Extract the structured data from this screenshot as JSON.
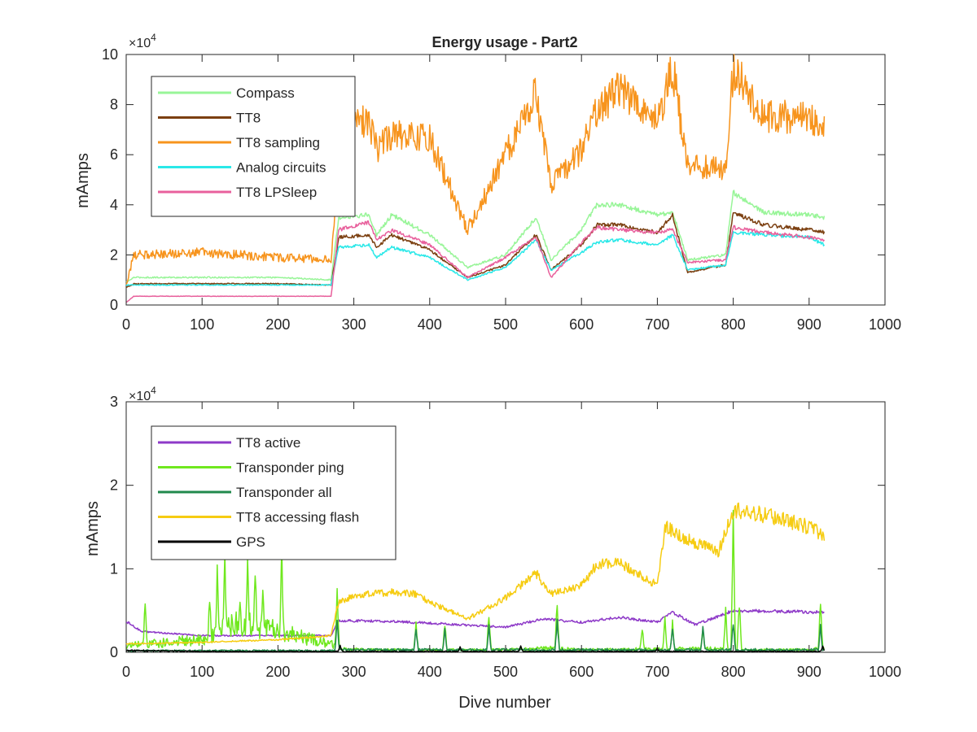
{
  "figure": {
    "title": "Energy usage - Part2",
    "xlabel": "Dive number"
  },
  "chart_data": [
    {
      "type": "line",
      "title": "Energy usage - Part2",
      "xlabel": "",
      "ylabel": "mAmps",
      "xlim": [
        0,
        1000
      ],
      "ylim": [
        0,
        100000
      ],
      "xticks": [
        0,
        100,
        200,
        300,
        400,
        500,
        600,
        700,
        800,
        900,
        1000
      ],
      "xtick_labels": [
        "0",
        "100",
        "200",
        "300",
        "400",
        "500",
        "600",
        "700",
        "800",
        "900",
        "1000"
      ],
      "yticks": [
        0,
        20000,
        40000,
        60000,
        80000,
        100000
      ],
      "ytick_labels": [
        "0",
        "2",
        "4",
        "6",
        "8",
        "10"
      ],
      "exponent_label": "×10",
      "exponent_power": "4",
      "grid": false,
      "legend_position": "top-left",
      "series": [
        {
          "name": "Compass",
          "color": "#98f598",
          "noise": 0.025,
          "x": [
            0,
            10,
            100,
            200,
            270,
            280,
            320,
            330,
            350,
            400,
            450,
            500,
            540,
            560,
            600,
            620,
            650,
            700,
            720,
            740,
            790,
            800,
            840,
            900,
            920
          ],
          "y": [
            9000,
            11000,
            11000,
            11000,
            10000,
            35000,
            36000,
            28000,
            36000,
            28000,
            15000,
            20000,
            35000,
            18000,
            30000,
            40000,
            40000,
            36000,
            37000,
            18000,
            20000,
            45000,
            37000,
            36000,
            35000
          ]
        },
        {
          "name": "TT8",
          "color": "#7b3f10",
          "noise": 0.025,
          "x": [
            0,
            10,
            100,
            200,
            270,
            280,
            320,
            330,
            350,
            400,
            450,
            500,
            540,
            560,
            600,
            620,
            650,
            700,
            720,
            740,
            790,
            800,
            840,
            900,
            920
          ],
          "y": [
            7000,
            8500,
            8500,
            8500,
            8000,
            27000,
            28000,
            23000,
            28000,
            22000,
            11000,
            16000,
            28000,
            14000,
            24000,
            32000,
            32000,
            29000,
            36000,
            13000,
            16000,
            37000,
            32000,
            30000,
            29000
          ]
        },
        {
          "name": "TT8 sampling",
          "color": "#f7941d",
          "noise": 0.09,
          "x": [
            0,
            10,
            100,
            200,
            270,
            280,
            300,
            320,
            330,
            350,
            400,
            450,
            500,
            540,
            560,
            600,
            620,
            650,
            700,
            720,
            740,
            790,
            800,
            840,
            900,
            920
          ],
          "y": [
            8000,
            20000,
            21000,
            19000,
            18000,
            55000,
            72000,
            74000,
            62000,
            68000,
            66000,
            30000,
            60000,
            85000,
            48000,
            62000,
            78000,
            86000,
            73000,
            95000,
            55000,
            55000,
            95000,
            75000,
            75000,
            73000
          ]
        },
        {
          "name": "Analog circuits",
          "color": "#2ae8e8",
          "noise": 0.025,
          "x": [
            0,
            10,
            100,
            200,
            270,
            280,
            320,
            330,
            350,
            400,
            450,
            500,
            540,
            560,
            600,
            620,
            650,
            700,
            720,
            740,
            790,
            800,
            840,
            900,
            920
          ],
          "y": [
            8000,
            8000,
            8000,
            8000,
            8000,
            23000,
            24000,
            19000,
            23000,
            19000,
            10000,
            15000,
            26000,
            14000,
            21000,
            25000,
            26000,
            24000,
            28000,
            14000,
            16000,
            29000,
            28000,
            27000,
            24000
          ]
        },
        {
          "name": "TT8 LPSleep",
          "color": "#e8609c",
          "noise": 0.025,
          "x": [
            0,
            10,
            100,
            200,
            270,
            280,
            320,
            330,
            350,
            400,
            450,
            500,
            540,
            560,
            600,
            620,
            650,
            700,
            720,
            740,
            790,
            800,
            840,
            900,
            920
          ],
          "y": [
            1000,
            3500,
            3500,
            3500,
            3500,
            30000,
            33000,
            26000,
            30000,
            24000,
            11000,
            19000,
            27000,
            11000,
            25000,
            31000,
            30000,
            29000,
            30000,
            17000,
            18000,
            31000,
            29000,
            27000,
            26000
          ]
        }
      ]
    },
    {
      "type": "line",
      "title": "",
      "xlabel": "Dive number",
      "ylabel": "mAmps",
      "xlim": [
        0,
        1000
      ],
      "ylim": [
        0,
        30000
      ],
      "xticks": [
        0,
        100,
        200,
        300,
        400,
        500,
        600,
        700,
        800,
        900,
        1000
      ],
      "xtick_labels": [
        "0",
        "100",
        "200",
        "300",
        "400",
        "500",
        "600",
        "700",
        "800",
        "900",
        "1000"
      ],
      "yticks": [
        0,
        10000,
        20000,
        30000
      ],
      "ytick_labels": [
        "0",
        "1",
        "2",
        "3"
      ],
      "exponent_label": "×10",
      "exponent_power": "4",
      "grid": false,
      "legend_position": "top-left",
      "series": [
        {
          "name": "TT8 active",
          "color": "#8e3ac8",
          "noise": 0.04,
          "x": [
            0,
            20,
            100,
            200,
            270,
            280,
            350,
            400,
            500,
            550,
            600,
            650,
            700,
            720,
            750,
            800,
            920
          ],
          "y": [
            3700,
            2500,
            2000,
            2000,
            2000,
            3800,
            3700,
            3500,
            3000,
            4000,
            3600,
            4200,
            3600,
            4800,
            3300,
            5000,
            4800
          ]
        },
        {
          "name": "Transponder ping",
          "color": "#6fe81e",
          "noise": 0.5,
          "x": [
            0,
            100,
            150,
            200,
            270,
            280,
            320,
            400,
            500,
            560,
            600,
            700,
            760,
            800,
            900,
            920
          ],
          "y": [
            800,
            1500,
            3500,
            2500,
            1000,
            400,
            300,
            300,
            300,
            500,
            300,
            400,
            500,
            300,
            300,
            500
          ]
        },
        {
          "name": "Transponder all",
          "color": "#218a4c",
          "noise": 0.5,
          "x": [
            0,
            100,
            270,
            280,
            400,
            500,
            600,
            700,
            800,
            900,
            920
          ],
          "y": [
            200,
            200,
            200,
            300,
            300,
            300,
            300,
            300,
            300,
            300,
            300
          ]
        },
        {
          "name": "TT8 accessing flash",
          "color": "#f6cc12",
          "noise": 0.06,
          "x": [
            0,
            100,
            200,
            270,
            280,
            300,
            350,
            380,
            400,
            450,
            500,
            540,
            560,
            600,
            620,
            650,
            700,
            710,
            750,
            780,
            800,
            840,
            900,
            920
          ],
          "y": [
            1000,
            1200,
            1500,
            2000,
            6000,
            6800,
            7200,
            7000,
            6000,
            4000,
            6500,
            9500,
            7000,
            8000,
            10500,
            10800,
            8000,
            15000,
            13000,
            12000,
            17000,
            16500,
            15000,
            14000
          ]
        },
        {
          "name": "GPS",
          "color": "#000000",
          "noise": 0.6,
          "x": [
            0,
            100,
            270,
            280,
            920
          ],
          "y": [
            200,
            100,
            100,
            100,
            100
          ]
        }
      ],
      "spikes": {
        "Transponder ping": {
          "x": [
            25,
            110,
            120,
            130,
            150,
            160,
            170,
            180,
            205,
            278,
            382,
            420,
            478,
            568,
            680,
            710,
            720,
            760,
            790,
            800,
            808,
            915
          ],
          "y": [
            6000,
            7000,
            9500,
            12000,
            6500,
            11500,
            10000,
            8000,
            11500,
            7000,
            3500,
            3500,
            4500,
            6000,
            3000,
            4000,
            3500,
            3000,
            5000,
            16000,
            6000,
            6000
          ]
        },
        "Transponder all": {
          "x": [
            278,
            382,
            420,
            478,
            568,
            720,
            760,
            800,
            915
          ],
          "y": [
            3500,
            3000,
            2500,
            3000,
            4000,
            3000,
            3000,
            3500,
            3000
          ]
        },
        "GPS": {
          "x": [
            282,
            440,
            520,
            700,
            918
          ],
          "y": [
            800,
            600,
            700,
            500,
            700
          ]
        }
      }
    }
  ]
}
